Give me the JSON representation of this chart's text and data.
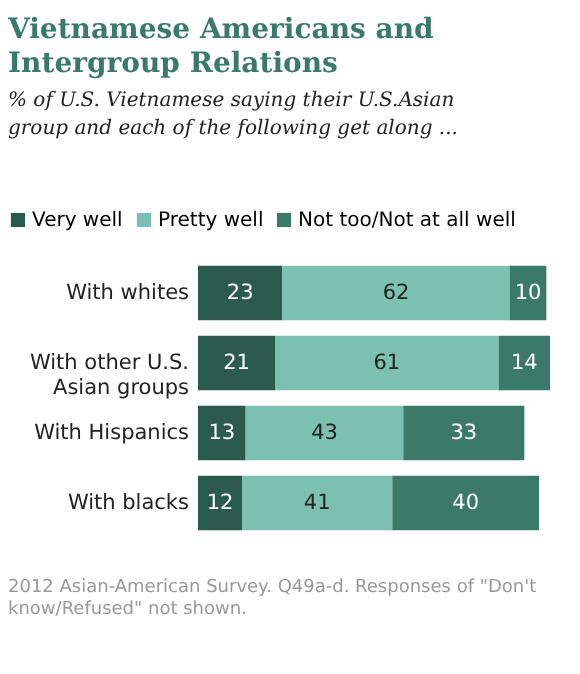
{
  "chart_data": {
    "type": "bar",
    "orientation": "horizontal",
    "stacked": true,
    "title": "Vietnamese Americans and Intergroup Relations",
    "subtitle": "% of U.S. Vietnamese saying their U.S.Asian group and each of the following get along ...",
    "categories": [
      "With whites",
      "With other U.S. Asian groups",
      "With Hispanics",
      "With blacks"
    ],
    "series": [
      {
        "name": "Very well",
        "color": "#2b5b4c",
        "values": [
          23,
          21,
          13,
          12
        ]
      },
      {
        "name": "Pretty well",
        "color": "#7bc0b0",
        "values": [
          62,
          61,
          43,
          41
        ]
      },
      {
        "name": "Not too/Not at all well",
        "color": "#3b7a68",
        "values": [
          10,
          14,
          33,
          40
        ]
      }
    ],
    "data_labels": true,
    "legend": "top",
    "tick_labels": "y",
    "annotations": [
      "2012 Asian-American Survey. Q49a-d. Responses of \"Don't know/Refused\" not shown."
    ]
  }
}
